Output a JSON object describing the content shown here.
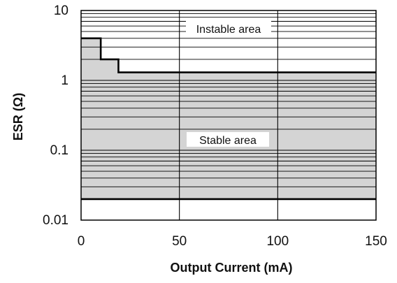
{
  "chart_data": {
    "type": "area",
    "xlabel": "Output Current (mA)",
    "ylabel": "ESR (Ω)",
    "xlim": [
      0,
      150
    ],
    "ylim": [
      0.01,
      10
    ],
    "yscale": "log",
    "x_ticks": [
      0,
      50,
      100,
      150
    ],
    "x_tick_labels": [
      "0",
      "50",
      "100",
      "150"
    ],
    "y_ticks": [
      0.01,
      0.1,
      1,
      10
    ],
    "y_tick_labels": [
      "0.01",
      "0.1",
      "1",
      "10"
    ],
    "grid": true,
    "upper_boundary": {
      "x": [
        0,
        10,
        10,
        19,
        19,
        150
      ],
      "y": [
        4,
        4,
        2,
        2,
        1.3,
        1.3
      ]
    },
    "lower_boundary": {
      "x": [
        0,
        150
      ],
      "y": [
        0.02,
        0.02
      ]
    },
    "annotations": {
      "instable": "Instable area",
      "stable": "Stable area"
    },
    "colors": {
      "stable_fill": "#d4d4d4",
      "boundary": "#000000",
      "grid": "#000000"
    }
  }
}
